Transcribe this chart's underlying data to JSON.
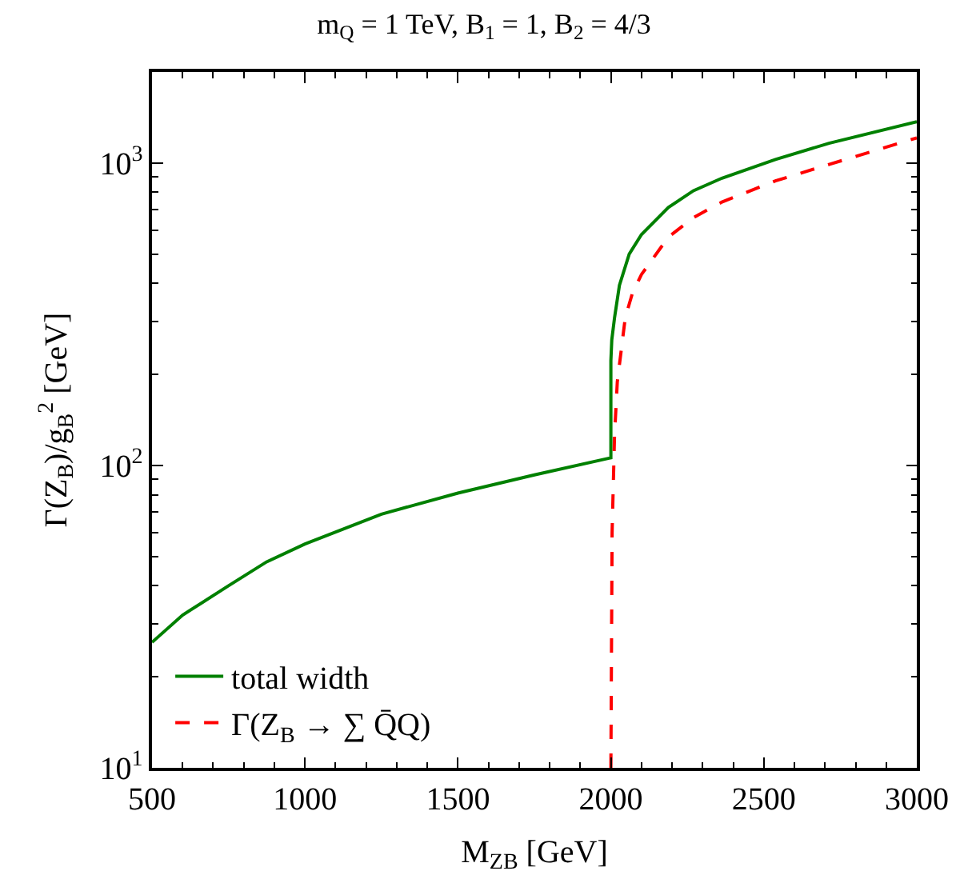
{
  "chart_data": {
    "type": "line",
    "title": "m$_{Q}$ = 1 TeV, B$_{1}$ = 1, B$_{2}$ = 4/3",
    "xlabel": "M$_{Z}$$_{B}$ [GeV]",
    "ylabel": "Γ(Z$_{B}$)/g$_{B}$$^{2}$ [GeV]",
    "log": "y",
    "xlim": [
      500,
      3000
    ],
    "ylim": [
      10,
      2000
    ],
    "xticks": [
      500,
      1000,
      1500,
      2000,
      2500,
      3000
    ],
    "yticks": [
      {
        "value": 10,
        "label": "10$^{1}$"
      },
      {
        "value": 100,
        "label": "10$^{2}$"
      },
      {
        "value": 1000,
        "label": "10$^{3}$"
      }
    ],
    "legend": "bottom left",
    "marker": "none",
    "series": [
      {
        "name": "total width",
        "color": "#008000",
        "line_style": "solid",
        "x": [
          500,
          600,
          750,
          875,
          1000,
          1250,
          1500,
          1750,
          2000,
          2000,
          2003,
          2012,
          2028,
          2060,
          2100,
          2188,
          2270,
          2363,
          2538,
          2713,
          3000
        ],
        "values": [
          26,
          32,
          40,
          48,
          55,
          69,
          81,
          93,
          106,
          222,
          260,
          308,
          394,
          500,
          580,
          713,
          810,
          891,
          1028,
          1162,
          1370
        ]
      },
      {
        "name": "Γ(Z$_{B}$ → ∑ Q̄Q)",
        "color": "#ff0000",
        "line_style": "dashed",
        "x": [
          2000,
          2004,
          2012,
          2021,
          2047,
          2070,
          2100,
          2188,
          2270,
          2363,
          2538,
          2713,
          3000
        ],
        "values": [
          10,
          60,
          126,
          189,
          308,
          370,
          428,
          569,
          660,
          743,
          873,
          989,
          1211
        ]
      }
    ]
  }
}
